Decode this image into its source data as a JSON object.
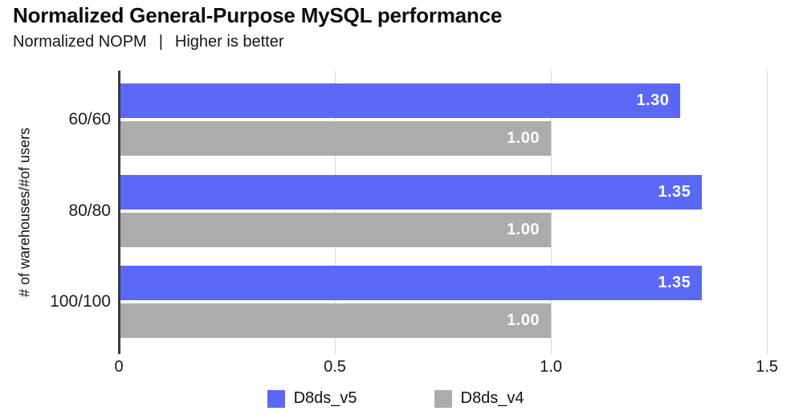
{
  "chart": {
    "title": "Normalized General-Purpose MySQL performance",
    "subtitle_metric": "Normalized NOPM",
    "subtitle_separator": "|",
    "subtitle_note": "Higher is better",
    "y_axis_label": "# of warehouses/#of users"
  },
  "chart_data": {
    "type": "bar",
    "orientation": "horizontal",
    "title": "Normalized General-Purpose MySQL performance",
    "subtitle": "Normalized NOPM | Higher is better",
    "categories": [
      "60/60",
      "80/80",
      "100/100"
    ],
    "series": [
      {
        "name": "D8ds_v5",
        "color": "#5a68f5",
        "values": [
          1.3,
          1.35,
          1.35
        ]
      },
      {
        "name": "D8ds_v4",
        "color": "#acacac",
        "values": [
          1.0,
          1.0,
          1.0
        ]
      }
    ],
    "value_label_format": "2-decimals",
    "xlabel": "",
    "ylabel": "# of warehouses/#of users",
    "xlim": [
      0,
      1.5
    ],
    "x_ticks": [
      {
        "value": 0,
        "label": "0"
      },
      {
        "value": 0.5,
        "label": "0.5"
      },
      {
        "value": 1.0,
        "label": "1.0"
      },
      {
        "value": 1.5,
        "label": "1.5"
      }
    ],
    "grid": true,
    "legend_position": "bottom",
    "value_label_color": "#ffffff",
    "axis_line_color": "#3a3a3a",
    "gridline_color": "#d9d9d9"
  }
}
